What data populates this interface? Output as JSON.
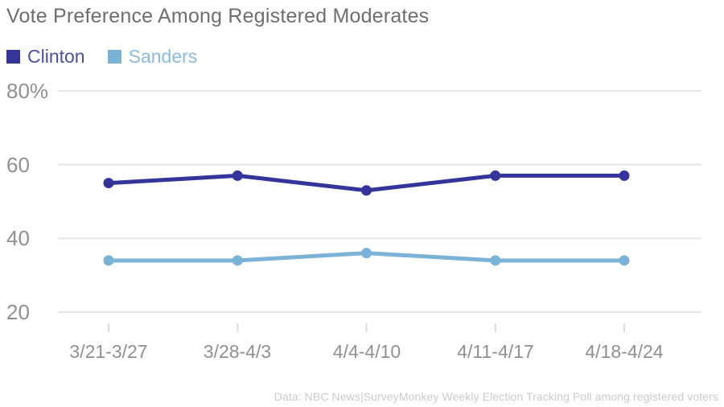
{
  "title": "Vote Preference Among Registered Moderates",
  "footer": "Data: NBC News|SurveyMonkey Weekly Election Tracking Poll among registered voters",
  "colors": {
    "clinton": "#34349B",
    "clinton_label": "#4E4EA8",
    "sanders": "#7AB2D8",
    "sanders_label": "#8BBBDE",
    "title_text": "#6E6E6E",
    "axis_text": "#909090",
    "gridline": "#E6E6E6",
    "tick": "#DCDCDC",
    "footer_text": "#CBCBCB",
    "background": "#FFFFFF"
  },
  "legend": {
    "items": [
      {
        "label": "Clinton",
        "color": "#34349B",
        "text_color": "#4E4EA8"
      },
      {
        "label": "Sanders",
        "color": "#7AB2D8",
        "text_color": "#8BBBDE"
      }
    ]
  },
  "chart_data": {
    "type": "line",
    "title": "Vote Preference Among Registered Moderates",
    "categories": [
      "3/21-3/27",
      "3/28-4/3",
      "4/4-4/10",
      "4/11-4/17",
      "4/18-4/24"
    ],
    "series": [
      {
        "name": "Clinton",
        "color": "#34349B",
        "values": [
          55,
          57,
          53,
          57,
          57
        ]
      },
      {
        "name": "Sanders",
        "color": "#7AB2D8",
        "values": [
          34,
          34,
          36,
          34,
          34
        ]
      }
    ],
    "xlabel": "",
    "ylabel": "",
    "ylim": [
      20,
      80
    ],
    "yticks": [
      80,
      60,
      40,
      20
    ],
    "ytick_labels": [
      "80%",
      "60",
      "40",
      "20"
    ],
    "grid": true,
    "legend_position": "top-left",
    "marker": "circle",
    "line_width": 5,
    "marker_radius": 6.5
  }
}
